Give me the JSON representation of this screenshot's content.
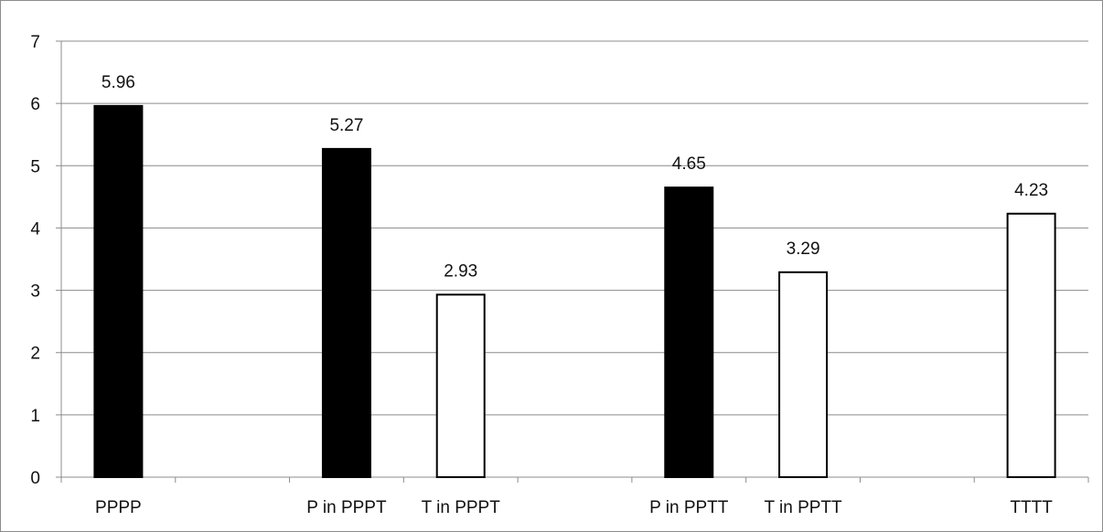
{
  "chart_data": {
    "type": "bar",
    "categories": [
      "PPPP",
      "",
      "P in PPPT",
      "T in PPPT",
      "",
      "P in PPTT",
      "T in PPTT",
      "",
      "TTTT"
    ],
    "values": [
      5.96,
      null,
      5.27,
      2.93,
      null,
      4.65,
      3.29,
      null,
      4.23
    ],
    "data_labels": [
      "5.96",
      "",
      "5.27",
      "2.93",
      "",
      "4.65",
      "3.29",
      "",
      "4.23"
    ],
    "bar_fill": [
      "#000000",
      null,
      "#000000",
      "#ffffff",
      null,
      "#000000",
      "#ffffff",
      null,
      "#ffffff"
    ],
    "ylim": [
      0,
      7
    ],
    "yticks": [
      "0",
      "1",
      "2",
      "3",
      "4",
      "5",
      "6",
      "7"
    ],
    "grid": true,
    "legend": "none",
    "title": "",
    "xlabel": "",
    "ylabel": ""
  },
  "colors": {
    "grid": "#8c8c8c",
    "bar_outline": "#000000",
    "filled_bar": "#000000",
    "open_bar": "#ffffff"
  }
}
